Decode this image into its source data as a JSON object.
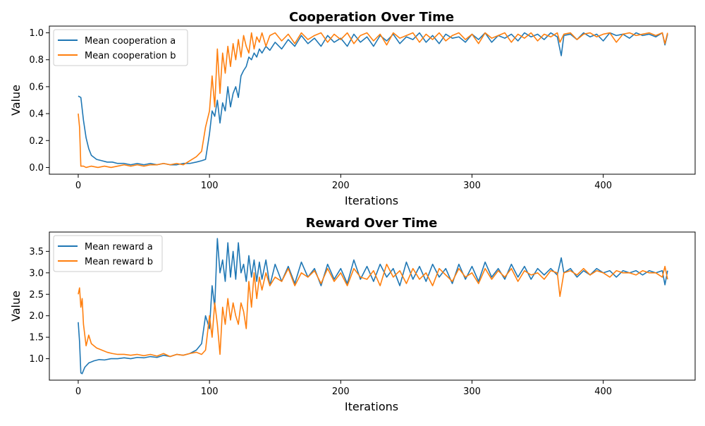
{
  "chart_data": [
    {
      "type": "line",
      "title": "Cooperation Over Time",
      "xlabel": "Iterations",
      "ylabel": "Value",
      "xlim": [
        -22,
        470
      ],
      "ylim": [
        -0.05,
        1.05
      ],
      "xticks": [
        0,
        100,
        200,
        300,
        400
      ],
      "yticks": [
        0.0,
        0.2,
        0.4,
        0.6,
        0.8,
        1.0
      ],
      "xtick_labels": [
        "0",
        "100",
        "200",
        "300",
        "400"
      ],
      "ytick_labels": [
        "0.0",
        "0.2",
        "0.4",
        "0.6",
        "0.8",
        "1.0"
      ],
      "grid": false,
      "legend": "top-left",
      "series": [
        {
          "name": "Mean cooperation a",
          "color": "#1f77b4",
          "x": [
            0,
            2,
            4,
            6,
            8,
            10,
            14,
            18,
            22,
            26,
            30,
            35,
            40,
            45,
            50,
            55,
            60,
            65,
            70,
            75,
            80,
            85,
            90,
            94,
            97,
            100,
            102,
            104,
            106,
            108,
            110,
            112,
            114,
            116,
            118,
            120,
            122,
            124,
            126,
            128,
            130,
            132,
            134,
            136,
            138,
            140,
            143,
            146,
            150,
            155,
            160,
            165,
            170,
            175,
            180,
            185,
            190,
            195,
            200,
            205,
            210,
            215,
            220,
            225,
            230,
            235,
            240,
            245,
            250,
            255,
            260,
            265,
            270,
            275,
            280,
            285,
            290,
            295,
            300,
            305,
            310,
            315,
            320,
            325,
            330,
            335,
            340,
            345,
            350,
            355,
            360,
            365,
            368,
            370,
            375,
            380,
            385,
            390,
            395,
            400,
            405,
            410,
            415,
            420,
            425,
            430,
            435,
            440,
            445,
            447,
            449
          ],
          "y": [
            0.53,
            0.52,
            0.35,
            0.22,
            0.14,
            0.09,
            0.06,
            0.05,
            0.04,
            0.04,
            0.03,
            0.03,
            0.02,
            0.03,
            0.02,
            0.03,
            0.02,
            0.03,
            0.02,
            0.02,
            0.03,
            0.03,
            0.04,
            0.05,
            0.06,
            0.25,
            0.42,
            0.38,
            0.5,
            0.33,
            0.48,
            0.42,
            0.6,
            0.45,
            0.55,
            0.6,
            0.52,
            0.68,
            0.72,
            0.75,
            0.82,
            0.8,
            0.85,
            0.82,
            0.88,
            0.85,
            0.9,
            0.87,
            0.93,
            0.88,
            0.95,
            0.9,
            0.98,
            0.92,
            0.96,
            0.9,
            0.98,
            0.93,
            0.96,
            0.9,
            0.99,
            0.93,
            0.97,
            0.9,
            0.98,
            0.94,
            0.99,
            0.92,
            0.97,
            0.95,
            1.0,
            0.93,
            0.98,
            0.92,
            0.99,
            0.96,
            0.97,
            0.93,
            0.99,
            0.95,
            1.0,
            0.93,
            0.98,
            0.96,
            0.99,
            0.94,
            1.0,
            0.97,
            0.99,
            0.95,
            1.0,
            0.97,
            0.83,
            0.98,
            0.99,
            0.95,
            1.0,
            0.97,
            0.99,
            0.94,
            1.0,
            0.98,
            0.99,
            0.96,
            1.0,
            0.98,
            0.99,
            0.97,
            1.0,
            0.91,
            0.99
          ]
        },
        {
          "name": "Mean cooperation b",
          "color": "#ff7f0e",
          "x": [
            0,
            1,
            2,
            4,
            6,
            10,
            15,
            20,
            25,
            30,
            35,
            40,
            45,
            50,
            55,
            60,
            65,
            70,
            75,
            80,
            85,
            90,
            94,
            97,
            100,
            102,
            104,
            106,
            108,
            110,
            112,
            114,
            116,
            118,
            120,
            122,
            124,
            126,
            128,
            130,
            132,
            134,
            136,
            138,
            140,
            143,
            146,
            150,
            155,
            160,
            165,
            170,
            175,
            180,
            185,
            190,
            195,
            200,
            205,
            210,
            215,
            220,
            225,
            230,
            235,
            240,
            245,
            250,
            255,
            260,
            265,
            270,
            275,
            280,
            285,
            290,
            295,
            300,
            305,
            310,
            315,
            320,
            325,
            330,
            335,
            340,
            345,
            350,
            355,
            360,
            365,
            367,
            370,
            375,
            380,
            385,
            390,
            395,
            400,
            405,
            410,
            415,
            420,
            425,
            430,
            435,
            440,
            445,
            447,
            449
          ],
          "y": [
            0.4,
            0.3,
            0.01,
            0.01,
            0.0,
            0.01,
            0.0,
            0.01,
            0.0,
            0.01,
            0.02,
            0.01,
            0.02,
            0.01,
            0.02,
            0.02,
            0.03,
            0.02,
            0.03,
            0.02,
            0.05,
            0.08,
            0.12,
            0.3,
            0.42,
            0.68,
            0.45,
            0.88,
            0.55,
            0.85,
            0.7,
            0.9,
            0.75,
            0.92,
            0.8,
            0.95,
            0.82,
            0.98,
            0.9,
            0.85,
            1.0,
            0.88,
            0.97,
            0.93,
            1.0,
            0.9,
            0.98,
            1.0,
            0.94,
            0.99,
            0.92,
            1.0,
            0.95,
            0.98,
            1.0,
            0.93,
            0.99,
            0.95,
            1.0,
            0.92,
            0.98,
            1.0,
            0.94,
            0.99,
            0.91,
            1.0,
            0.96,
            0.98,
            1.0,
            0.93,
            0.99,
            0.95,
            1.0,
            0.94,
            0.98,
            1.0,
            0.95,
            0.99,
            0.92,
            1.0,
            0.96,
            0.98,
            1.0,
            0.93,
            0.99,
            0.96,
            1.0,
            0.94,
            0.99,
            0.97,
            1.0,
            0.93,
            0.99,
            1.0,
            0.95,
            0.99,
            1.0,
            0.97,
            0.99,
            1.0,
            0.93,
            0.99,
            1.0,
            0.98,
            0.99,
            1.0,
            0.98,
            1.0,
            0.92,
            1.0
          ]
        }
      ]
    },
    {
      "type": "line",
      "title": "Reward Over Time",
      "xlabel": "Iterations",
      "ylabel": "Value",
      "xlim": [
        -22,
        470
      ],
      "ylim": [
        0.5,
        3.95
      ],
      "xticks": [
        0,
        100,
        200,
        300,
        400
      ],
      "yticks": [
        1.0,
        1.5,
        2.0,
        2.5,
        3.0,
        3.5
      ],
      "xtick_labels": [
        "0",
        "100",
        "200",
        "300",
        "400"
      ],
      "ytick_labels": [
        "1.0",
        "1.5",
        "2.0",
        "2.5",
        "3.0",
        "3.5"
      ],
      "grid": false,
      "legend": "top-left",
      "series": [
        {
          "name": "Mean reward a",
          "color": "#1f77b4",
          "x": [
            0,
            1,
            2,
            3,
            5,
            8,
            12,
            16,
            20,
            25,
            30,
            35,
            40,
            45,
            50,
            55,
            60,
            65,
            70,
            75,
            80,
            85,
            90,
            94,
            97,
            100,
            102,
            104,
            106,
            108,
            110,
            112,
            114,
            116,
            118,
            120,
            122,
            124,
            126,
            128,
            130,
            132,
            134,
            136,
            138,
            140,
            143,
            146,
            150,
            155,
            160,
            165,
            170,
            175,
            180,
            185,
            190,
            195,
            200,
            205,
            210,
            215,
            220,
            225,
            230,
            235,
            240,
            245,
            250,
            255,
            260,
            265,
            270,
            275,
            280,
            285,
            290,
            295,
            300,
            305,
            310,
            315,
            320,
            325,
            330,
            335,
            340,
            345,
            350,
            355,
            360,
            365,
            368,
            370,
            375,
            380,
            385,
            390,
            395,
            400,
            405,
            410,
            415,
            420,
            425,
            430,
            435,
            440,
            445,
            447,
            449
          ],
          "y": [
            1.85,
            1.4,
            0.67,
            0.65,
            0.8,
            0.9,
            0.95,
            0.98,
            0.97,
            1.0,
            1.0,
            1.02,
            1.0,
            1.03,
            1.02,
            1.05,
            1.03,
            1.08,
            1.05,
            1.1,
            1.08,
            1.12,
            1.2,
            1.35,
            2.0,
            1.7,
            2.7,
            2.2,
            3.8,
            3.0,
            3.3,
            2.8,
            3.7,
            2.9,
            3.5,
            2.85,
            3.7,
            3.0,
            3.2,
            2.8,
            3.4,
            2.9,
            3.3,
            2.8,
            3.25,
            2.85,
            3.3,
            2.7,
            3.2,
            2.8,
            3.15,
            2.75,
            3.25,
            2.9,
            3.1,
            2.7,
            3.2,
            2.85,
            3.1,
            2.75,
            3.3,
            2.85,
            3.15,
            2.8,
            3.2,
            2.9,
            3.1,
            2.7,
            3.25,
            2.85,
            3.15,
            2.8,
            3.2,
            2.9,
            3.1,
            2.75,
            3.2,
            2.85,
            3.15,
            2.8,
            3.25,
            2.9,
            3.1,
            2.85,
            3.2,
            2.9,
            3.15,
            2.85,
            3.1,
            2.95,
            3.1,
            2.95,
            3.35,
            3.0,
            3.1,
            2.9,
            3.05,
            2.95,
            3.1,
            3.0,
            3.05,
            2.9,
            3.05,
            3.0,
            3.05,
            2.95,
            3.05,
            3.0,
            3.05,
            2.72,
            3.05
          ]
        },
        {
          "name": "Mean reward b",
          "color": "#ff7f0e",
          "x": [
            0,
            1,
            2,
            3,
            4,
            6,
            8,
            10,
            14,
            18,
            22,
            26,
            30,
            35,
            40,
            45,
            50,
            55,
            60,
            65,
            70,
            75,
            80,
            85,
            90,
            94,
            97,
            100,
            102,
            104,
            106,
            108,
            110,
            112,
            114,
            116,
            118,
            120,
            122,
            124,
            126,
            128,
            130,
            132,
            134,
            136,
            138,
            140,
            143,
            146,
            150,
            155,
            160,
            165,
            170,
            175,
            180,
            185,
            190,
            195,
            200,
            205,
            210,
            215,
            220,
            225,
            230,
            235,
            240,
            245,
            250,
            255,
            260,
            265,
            270,
            275,
            280,
            285,
            290,
            295,
            300,
            305,
            310,
            315,
            320,
            325,
            330,
            335,
            340,
            345,
            350,
            355,
            360,
            365,
            367,
            370,
            375,
            380,
            385,
            390,
            395,
            400,
            405,
            410,
            415,
            420,
            425,
            430,
            435,
            440,
            445,
            447,
            449
          ],
          "y": [
            2.5,
            2.65,
            2.2,
            2.4,
            1.8,
            1.3,
            1.55,
            1.35,
            1.25,
            1.2,
            1.15,
            1.12,
            1.1,
            1.1,
            1.08,
            1.1,
            1.07,
            1.1,
            1.06,
            1.12,
            1.05,
            1.1,
            1.08,
            1.12,
            1.15,
            1.1,
            1.2,
            2.0,
            1.5,
            2.3,
            1.8,
            1.1,
            2.2,
            1.8,
            2.4,
            1.9,
            2.3,
            2.0,
            1.8,
            2.3,
            2.1,
            1.7,
            2.8,
            2.2,
            3.0,
            2.4,
            2.9,
            2.6,
            3.0,
            2.7,
            2.9,
            2.8,
            3.1,
            2.7,
            3.0,
            2.9,
            3.05,
            2.75,
            3.1,
            2.8,
            3.0,
            2.7,
            3.1,
            2.9,
            2.85,
            3.05,
            2.7,
            3.2,
            2.9,
            3.05,
            2.75,
            3.1,
            2.85,
            3.0,
            2.7,
            3.1,
            2.95,
            2.8,
            3.1,
            2.9,
            3.0,
            2.75,
            3.1,
            2.85,
            3.05,
            2.9,
            3.1,
            2.8,
            3.05,
            2.95,
            3.0,
            2.85,
            3.05,
            3.0,
            2.45,
            3.0,
            3.05,
            2.95,
            3.1,
            2.95,
            3.05,
            3.0,
            2.9,
            3.05,
            3.0,
            3.0,
            2.95,
            3.05,
            3.0,
            3.0,
            2.9,
            3.15,
            2.85
          ]
        }
      ]
    }
  ]
}
